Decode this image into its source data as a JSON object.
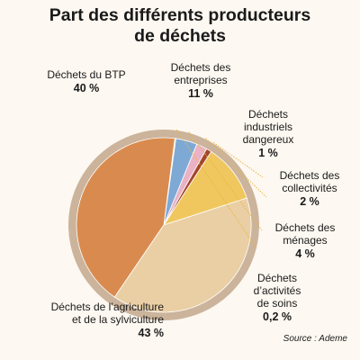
{
  "title_line1": "Part des différents producteurs",
  "title_line2": "de déchets",
  "source": "Source : Ademe",
  "chart_data": {
    "type": "pie",
    "title": "Part des différents producteurs de déchets",
    "slices": [
      {
        "name": "Déchets des entreprises",
        "name_lines": [
          "Déchets des",
          "entreprises"
        ],
        "label": "11 %",
        "value": 11,
        "color": "#f0c75e"
      },
      {
        "name": "Déchets industriels dangereux",
        "name_lines": [
          "Déchets",
          "industriels",
          "dangereux"
        ],
        "label": "1 %",
        "value": 1,
        "color": "#a4472c"
      },
      {
        "name": "Déchets des collectivités",
        "name_lines": [
          "Déchets des",
          "collectivités"
        ],
        "label": "2 %",
        "value": 2,
        "color": "#eab2c4"
      },
      {
        "name": "Déchets des ménages",
        "name_lines": [
          "Déchets des",
          "ménages"
        ],
        "label": "4 %",
        "value": 4,
        "color": "#7ea9d4"
      },
      {
        "name": "Déchets d’activités de soins",
        "name_lines": [
          "Déchets",
          "d’activités",
          "de soins"
        ],
        "label": "0,2 %",
        "value": 0.2,
        "color": "#e9cf7a"
      },
      {
        "name": "Déchets de l’agriculture et de la sylviculture",
        "name_lines": [
          "Déchets de l’agriculture",
          "et de la sylviculture"
        ],
        "label": "43 %",
        "value": 43,
        "color": "#d98b4f"
      },
      {
        "name": "Déchets du BTP",
        "name_lines": [
          "Déchets du BTP"
        ],
        "label": "40 %",
        "value": 40,
        "color": "#eacfa5"
      }
    ]
  }
}
